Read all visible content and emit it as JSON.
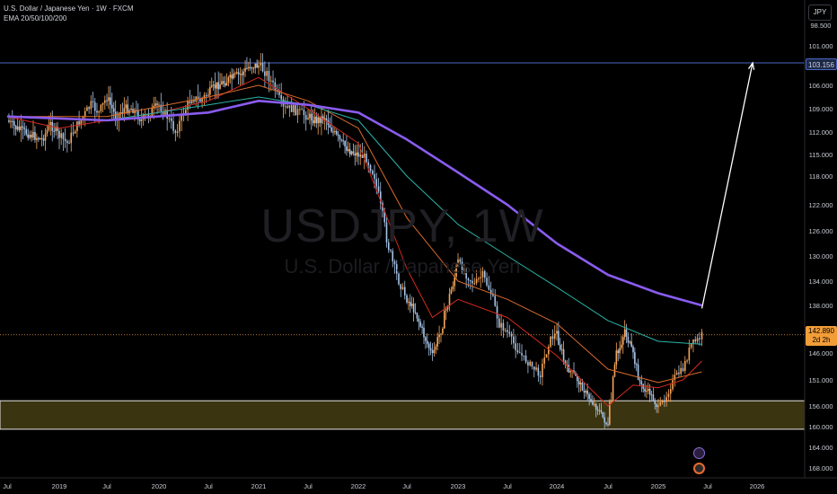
{
  "header": {
    "title": "U.S. Dollar / Japanese Yen · 1W · FXCM",
    "indicator": "EMA 20/50/100/200"
  },
  "watermark": {
    "symbol": "USDJPY, 1W",
    "name": "U.S. Dollar / Japanese Yen"
  },
  "currency_button": "JPY",
  "price_tags": {
    "target": "103.156",
    "last_price": "142.890",
    "countdown": "2d 2h"
  },
  "colors": {
    "background": "#000000",
    "candle_up": "#f5a55a",
    "candle_down": "#a7c4e8",
    "ema20": "#d42a1e",
    "ema50": "#d96a2b",
    "ema100": "#2bb3a6",
    "ema200": "#8a5cf0",
    "target_line": "#4a67c4",
    "zone_fill": "#3a3410",
    "zone_border": "#e6e6e6",
    "arrow": "#ffffff"
  },
  "chart_data": {
    "type": "line",
    "title": "U.S. Dollar / Japanese Yen · 1W · FXCM",
    "y_axis": {
      "inverted": true,
      "range": [
        96.0,
        170.0
      ],
      "ticks": [
        "98.500",
        "101.000",
        "103.156",
        "106.000",
        "109.000",
        "112.000",
        "115.000",
        "118.000",
        "122.000",
        "126.000",
        "130.000",
        "134.000",
        "138.000",
        "142.000",
        "146.000",
        "151.000",
        "156.000",
        "160.000",
        "164.000",
        "168.000"
      ],
      "tick_values": [
        98.5,
        101,
        103.156,
        106,
        109,
        112,
        115,
        118,
        122,
        126,
        130,
        134,
        138,
        142,
        146,
        151,
        156,
        160,
        164,
        168
      ]
    },
    "x_axis": {
      "range": [
        "2018-07",
        "2026-06"
      ],
      "ticks": [
        {
          "label": "Jul",
          "date": "2018-07"
        },
        {
          "label": "2019",
          "date": "2019-01"
        },
        {
          "label": "Jul",
          "date": "2019-07"
        },
        {
          "label": "2020",
          "date": "2020-01"
        },
        {
          "label": "Jul",
          "date": "2020-07"
        },
        {
          "label": "2021",
          "date": "2021-01"
        },
        {
          "label": "Jul",
          "date": "2021-07"
        },
        {
          "label": "2022",
          "date": "2022-01"
        },
        {
          "label": "Jul",
          "date": "2022-07"
        },
        {
          "label": "2023",
          "date": "2023-01"
        },
        {
          "label": "Jul",
          "date": "2023-07"
        },
        {
          "label": "2024",
          "date": "2024-01"
        },
        {
          "label": "Jul",
          "date": "2024-07"
        },
        {
          "label": "2025",
          "date": "2025-01"
        },
        {
          "label": "Jul",
          "date": "2025-07"
        },
        {
          "label": "2026",
          "date": "2026-01"
        }
      ]
    },
    "candles": [
      [
        "2018-07",
        110.5
      ],
      [
        "2018-08",
        111.5
      ],
      [
        "2018-09",
        112.0
      ],
      [
        "2018-10",
        112.5
      ],
      [
        "2018-11",
        113.0
      ],
      [
        "2018-12",
        111.0
      ],
      [
        "2019-01",
        112.5
      ],
      [
        "2019-02",
        113.5
      ],
      [
        "2019-03",
        111.5
      ],
      [
        "2019-04",
        110.0
      ],
      [
        "2019-05",
        108.5
      ],
      [
        "2019-06",
        109.5
      ],
      [
        "2019-07",
        107.5
      ],
      [
        "2019-08",
        110.0
      ],
      [
        "2019-09",
        109.0
      ],
      [
        "2019-10",
        109.0
      ],
      [
        "2019-11",
        110.5
      ],
      [
        "2019-12",
        109.5
      ],
      [
        "2020-01",
        108.5
      ],
      [
        "2020-02",
        110.0
      ],
      [
        "2020-03",
        112.0
      ],
      [
        "2020-04",
        109.5
      ],
      [
        "2020-05",
        107.5
      ],
      [
        "2020-06",
        108.0
      ],
      [
        "2020-07",
        107.0
      ],
      [
        "2020-08",
        106.0
      ],
      [
        "2020-09",
        105.5
      ],
      [
        "2020-10",
        105.0
      ],
      [
        "2020-11",
        104.5
      ],
      [
        "2020-12",
        103.5
      ],
      [
        "2021-01",
        103.5
      ],
      [
        "2021-02",
        104.5
      ],
      [
        "2021-03",
        106.5
      ],
      [
        "2021-04",
        109.0
      ],
      [
        "2021-05",
        109.0
      ],
      [
        "2021-06",
        109.5
      ],
      [
        "2021-07",
        110.0
      ],
      [
        "2021-08",
        110.5
      ],
      [
        "2021-09",
        110.0
      ],
      [
        "2021-10",
        112.0
      ],
      [
        "2021-11",
        113.5
      ],
      [
        "2021-12",
        114.5
      ],
      [
        "2022-01",
        115.0
      ],
      [
        "2022-02",
        115.5
      ],
      [
        "2022-03",
        118.0
      ],
      [
        "2022-04",
        124.0
      ],
      [
        "2022-05",
        130.0
      ],
      [
        "2022-06",
        134.0
      ],
      [
        "2022-07",
        137.0
      ],
      [
        "2022-08",
        139.0
      ],
      [
        "2022-09",
        143.0
      ],
      [
        "2022-10",
        146.5
      ],
      [
        "2022-11",
        142.0
      ],
      [
        "2022-12",
        136.5
      ],
      [
        "2023-01",
        131.0
      ],
      [
        "2023-02",
        133.0
      ],
      [
        "2023-03",
        134.5
      ],
      [
        "2023-04",
        133.0
      ],
      [
        "2023-05",
        136.0
      ],
      [
        "2023-06",
        141.0
      ],
      [
        "2023-07",
        142.5
      ],
      [
        "2023-08",
        145.0
      ],
      [
        "2023-09",
        147.0
      ],
      [
        "2023-10",
        148.5
      ],
      [
        "2023-11",
        150.0
      ],
      [
        "2023-12",
        144.0
      ],
      [
        "2024-01",
        142.5
      ],
      [
        "2024-02",
        148.5
      ],
      [
        "2024-03",
        150.0
      ],
      [
        "2024-04",
        152.5
      ],
      [
        "2024-05",
        155.0
      ],
      [
        "2024-06",
        157.0
      ],
      [
        "2024-07",
        160.0
      ],
      [
        "2024-08",
        147.0
      ],
      [
        "2024-09",
        142.0
      ],
      [
        "2024-10",
        146.5
      ],
      [
        "2024-11",
        152.5
      ],
      [
        "2024-12",
        153.5
      ],
      [
        "2025-01",
        156.5
      ],
      [
        "2025-02",
        154.0
      ],
      [
        "2025-03",
        150.5
      ],
      [
        "2025-04",
        149.0
      ],
      [
        "2025-05",
        144.5
      ],
      [
        "2025-06",
        143.5
      ],
      [
        "2025-06-10",
        142.89
      ]
    ],
    "series": [
      {
        "name": "EMA 20",
        "values": [
          [
            "2018-07",
            110.0
          ],
          [
            "2019-01",
            111.5
          ],
          [
            "2019-07",
            110.5
          ],
          [
            "2020-01",
            109.5
          ],
          [
            "2020-07",
            108.0
          ],
          [
            "2021-01",
            105.0
          ],
          [
            "2021-07",
            109.0
          ],
          [
            "2022-01",
            113.5
          ],
          [
            "2022-07",
            132.0
          ],
          [
            "2022-10",
            140.0
          ],
          [
            "2023-01",
            137.0
          ],
          [
            "2023-07",
            140.0
          ],
          [
            "2024-01",
            146.5
          ],
          [
            "2024-07",
            156.0
          ],
          [
            "2024-10",
            152.0
          ],
          [
            "2025-01",
            152.5
          ],
          [
            "2025-04",
            151.0
          ],
          [
            "2025-06-10",
            147.5
          ]
        ]
      },
      {
        "name": "EMA 50",
        "values": [
          [
            "2018-07",
            110.0
          ],
          [
            "2019-07",
            110.0
          ],
          [
            "2020-07",
            107.5
          ],
          [
            "2021-01",
            106.0
          ],
          [
            "2021-07",
            108.0
          ],
          [
            "2022-01",
            111.5
          ],
          [
            "2022-07",
            124.0
          ],
          [
            "2023-01",
            134.0
          ],
          [
            "2023-07",
            137.0
          ],
          [
            "2024-01",
            141.0
          ],
          [
            "2024-07",
            149.0
          ],
          [
            "2025-01",
            151.5
          ],
          [
            "2025-06-10",
            149.5
          ]
        ]
      },
      {
        "name": "EMA 100",
        "values": [
          [
            "2018-07",
            110.0
          ],
          [
            "2019-07",
            110.5
          ],
          [
            "2020-07",
            108.5
          ],
          [
            "2021-01",
            107.5
          ],
          [
            "2021-07",
            108.5
          ],
          [
            "2022-01",
            110.5
          ],
          [
            "2022-07",
            118.0
          ],
          [
            "2023-01",
            125.0
          ],
          [
            "2023-07",
            130.0
          ],
          [
            "2024-01",
            135.0
          ],
          [
            "2024-07",
            140.5
          ],
          [
            "2025-01",
            144.0
          ],
          [
            "2025-06-10",
            144.5
          ]
        ]
      },
      {
        "name": "EMA 200",
        "values": [
          [
            "2018-07",
            110.0
          ],
          [
            "2019-07",
            110.5
          ],
          [
            "2020-07",
            109.5
          ],
          [
            "2021-01",
            108.0
          ],
          [
            "2021-07",
            108.5
          ],
          [
            "2022-01",
            109.5
          ],
          [
            "2022-07",
            113.0
          ],
          [
            "2023-01",
            117.5
          ],
          [
            "2023-07",
            122.0
          ],
          [
            "2024-01",
            128.0
          ],
          [
            "2024-07",
            133.0
          ],
          [
            "2025-01",
            136.0
          ],
          [
            "2025-06-10",
            138.0
          ]
        ]
      }
    ],
    "annotations": {
      "target_level": 103.156,
      "last_price_level": 142.89,
      "support_zone": [
        155.0,
        160.5
      ],
      "arrow": {
        "from": [
          "2025-06-10",
          138.5
        ],
        "to": [
          "2025-12-15",
          103.156
        ]
      }
    }
  }
}
